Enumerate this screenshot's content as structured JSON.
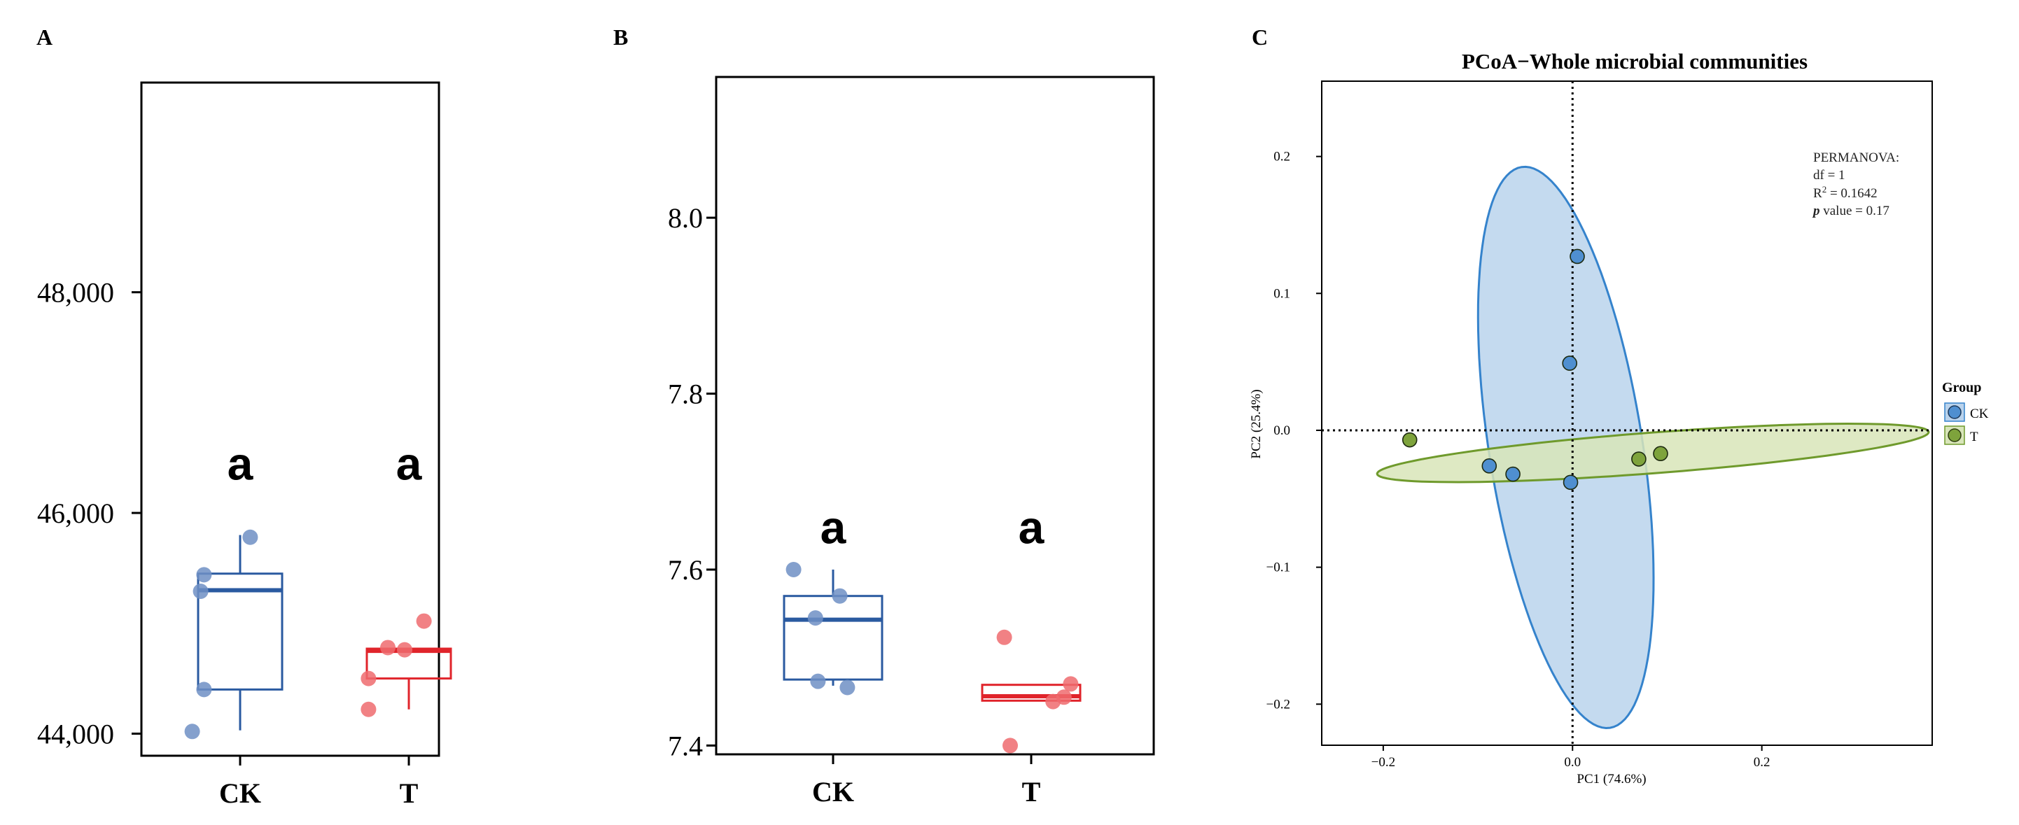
{
  "panel_a": {
    "panel_label": "A",
    "chart_data": {
      "type": "box",
      "categories": [
        "CK",
        "T"
      ],
      "ylim": [
        43800,
        49900
      ],
      "yticks": [
        44000,
        46000,
        48000
      ],
      "ytick_labels": [
        "44,000",
        "46,000",
        "48,000"
      ],
      "boxes": [
        {
          "name": "CK",
          "q1": 44400,
          "median": 45300,
          "q3": 45450,
          "whisker_low": 44030,
          "whisker_high": 45800,
          "color": "#2a5aa0",
          "point_color": "#6f8fc4"
        },
        {
          "name": "T",
          "q1": 44500,
          "median": 44750,
          "q3": 44770,
          "whisker_low": 44220,
          "whisker_high": 44770,
          "color": "#e0242b",
          "point_color": "#ef6b6e"
        }
      ],
      "points": [
        {
          "group": "CK",
          "jitter": 0.12,
          "y": 45780
        },
        {
          "group": "CK",
          "jitter": -0.43,
          "y": 45440
        },
        {
          "group": "CK",
          "jitter": -0.47,
          "y": 45290
        },
        {
          "group": "CK",
          "jitter": -0.43,
          "y": 44400
        },
        {
          "group": "CK",
          "jitter": -0.57,
          "y": 44020
        },
        {
          "group": "T",
          "jitter": -0.25,
          "y": 44780
        },
        {
          "group": "T",
          "jitter": -0.05,
          "y": 44760
        },
        {
          "group": "T",
          "jitter": 0.18,
          "y": 45020
        },
        {
          "group": "T",
          "jitter": -0.48,
          "y": 44500
        },
        {
          "group": "T",
          "jitter": -0.48,
          "y": 44220
        }
      ],
      "significance_letters": [
        {
          "group": "CK",
          "letter": "a",
          "y": 46300
        },
        {
          "group": "T",
          "letter": "a",
          "y": 46300
        }
      ]
    }
  },
  "panel_b": {
    "panel_label": "B",
    "chart_data": {
      "type": "box",
      "categories": [
        "CK",
        "T"
      ],
      "ylim": [
        7.39,
        8.16
      ],
      "yticks": [
        7.4,
        7.6,
        7.8,
        8.0
      ],
      "ytick_labels": [
        "7.4",
        "7.6",
        "7.8",
        "8.0"
      ],
      "boxes": [
        {
          "name": "CK",
          "q1": 7.475,
          "median": 7.543,
          "q3": 7.57,
          "whisker_low": 7.468,
          "whisker_high": 7.6,
          "color": "#2a5aa0",
          "point_color": "#6f8fc4"
        },
        {
          "name": "T",
          "q1": 7.451,
          "median": 7.456,
          "q3": 7.469,
          "whisker_low": 7.451,
          "whisker_high": 7.469,
          "color": "#e0242b",
          "point_color": "#ef6b6e"
        }
      ],
      "points": [
        {
          "group": "CK",
          "jitter": -0.47,
          "y": 7.6
        },
        {
          "group": "CK",
          "jitter": 0.08,
          "y": 7.57
        },
        {
          "group": "CK",
          "jitter": -0.21,
          "y": 7.545
        },
        {
          "group": "CK",
          "jitter": -0.18,
          "y": 7.473
        },
        {
          "group": "CK",
          "jitter": 0.17,
          "y": 7.466
        },
        {
          "group": "T",
          "jitter": -0.32,
          "y": 7.523
        },
        {
          "group": "T",
          "jitter": 0.47,
          "y": 7.47
        },
        {
          "group": "T",
          "jitter": 0.26,
          "y": 7.45
        },
        {
          "group": "T",
          "jitter": 0.39,
          "y": 7.455
        },
        {
          "group": "T",
          "jitter": -0.25,
          "y": 7.4
        }
      ],
      "significance_letters": [
        {
          "group": "CK",
          "letter": "a",
          "y": 7.63
        },
        {
          "group": "T",
          "letter": "a",
          "y": 7.63
        }
      ]
    }
  },
  "panel_c": {
    "panel_label": "C",
    "chart_data": {
      "type": "scatter",
      "title": "PCoA−Whole microbial communities",
      "xlabel": "PC1 (74.6%)",
      "ylabel": "PC2 (25.4%)",
      "xlim": [
        -0.265,
        0.38
      ],
      "ylim": [
        -0.23,
        0.255
      ],
      "xticks": [
        -0.2,
        0.0,
        0.2
      ],
      "xtick_labels": [
        "−0.2",
        "0.0",
        "0.2"
      ],
      "yticks": [
        -0.2,
        -0.1,
        0.0,
        0.1,
        0.2
      ],
      "ytick_labels": [
        "−0.2",
        "−0.1",
        "0.0",
        "0.1",
        "0.2"
      ],
      "reference_lines": {
        "x": 0,
        "y": 0
      },
      "series": [
        {
          "name": "CK",
          "color": "#4f8fd0",
          "fill": "#bad3ec",
          "stroke": "#3583cc",
          "x": [
            0.005,
            -0.003,
            -0.088,
            -0.063,
            -0.002
          ],
          "y": [
            0.127,
            0.049,
            -0.026,
            -0.032,
            -0.038
          ],
          "ellipse": {
            "cx": -0.0071,
            "cy": -0.0125,
            "rx": 0.2103,
            "ry": 0.0799,
            "angle_deg": -76
          }
        },
        {
          "name": "T",
          "color": "#7ea33c",
          "fill": "#d8e5b9",
          "stroke": "#6f9a2c",
          "x": [
            -0.172,
            0.07,
            0.093
          ],
          "y": [
            -0.007,
            -0.021,
            -0.017
          ],
          "ellipse": {
            "cx": 0.0849,
            "cy": -0.0165,
            "rx": 0.2918,
            "ry": 0.0149,
            "angle_deg": 3
          }
        }
      ],
      "legend": {
        "title": "Group",
        "position": "right",
        "entries": [
          "CK",
          "T"
        ]
      },
      "annotation": {
        "line1": "PERMANOVA:",
        "line2": "df = 1",
        "line3_prefix": "R",
        "line3_sup": "2",
        "line3_suffix": " = 0.1642",
        "line4_italic": "p",
        "line4_suffix": " value = 0.17"
      }
    }
  }
}
